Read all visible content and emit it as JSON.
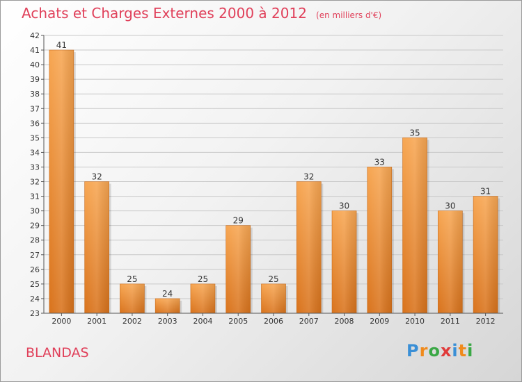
{
  "title": "Achats et Charges Externes 2000 à 2012",
  "unit_note": "(en milliers d'€)",
  "commune": "BLANDAS",
  "logo": {
    "text": "Proxiti",
    "letters": [
      {
        "char": "P",
        "color": "#3a8fd6"
      },
      {
        "char": "r",
        "color": "#f08a1c"
      },
      {
        "char": "o",
        "color": "#3aa845"
      },
      {
        "char": "x",
        "color": "#e03a3a"
      },
      {
        "char": "i",
        "color": "#3a8fd6"
      },
      {
        "char": "t",
        "color": "#f08a1c"
      },
      {
        "char": "i",
        "color": "#3aa845"
      }
    ]
  },
  "chart_data": {
    "type": "bar",
    "title": "Achats et Charges Externes 2000 à 2012",
    "categories": [
      "2000",
      "2001",
      "2002",
      "2003",
      "2004",
      "2005",
      "2006",
      "2007",
      "2008",
      "2009",
      "2010",
      "2011",
      "2012"
    ],
    "values": [
      41,
      32,
      25,
      24,
      25,
      29,
      25,
      32,
      30,
      33,
      35,
      30,
      31
    ],
    "ylim": [
      23,
      42
    ],
    "yticks": [
      23,
      24,
      25,
      26,
      27,
      28,
      29,
      30,
      31,
      32,
      33,
      34,
      35,
      36,
      37,
      38,
      39,
      40,
      41,
      42
    ],
    "grid": true,
    "bar_color_top": "#f7a652",
    "bar_color_bottom": "#d9731c"
  }
}
